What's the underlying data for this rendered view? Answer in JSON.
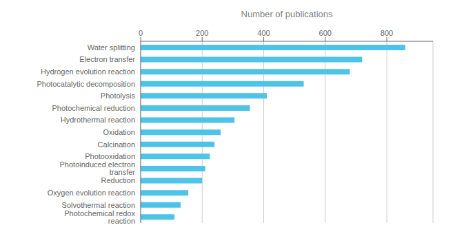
{
  "chart_data": {
    "type": "bar",
    "orientation": "horizontal",
    "xlabel": "Number of publications",
    "categories": [
      "Photochemical redox reaction",
      "Solvothermal reaction",
      "Oxygen evolution reaction",
      "Reduction",
      "Photoinduced electron transfer",
      "Photooxidation",
      "Calcination",
      "Oxidation",
      "Hydrothermal reaction",
      "Photochemical reduction",
      "Photolysis",
      "Photocatalytic decomposition",
      "Hydrogen evolution reaction",
      "Electron transfer",
      "Water splitting"
    ],
    "values": [
      110,
      130,
      155,
      200,
      210,
      225,
      240,
      260,
      305,
      355,
      410,
      530,
      680,
      720,
      860
    ],
    "color": "#4DC3E8",
    "xlim": [
      0,
      950
    ],
    "xticks": [
      0,
      200,
      400,
      600,
      800
    ],
    "grid": true
  }
}
